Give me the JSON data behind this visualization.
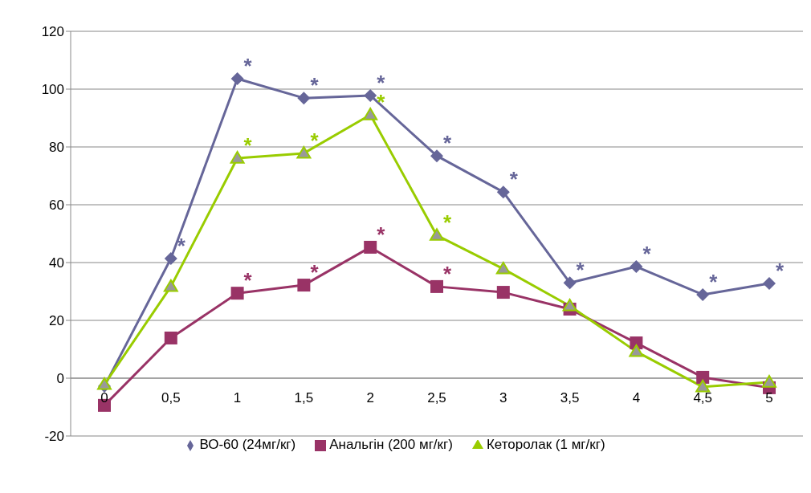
{
  "chart_data": {
    "type": "line",
    "categories": [
      "0",
      "0,5",
      "1",
      "1,5",
      "2",
      "2,5",
      "3",
      "3,5",
      "4",
      "4,5",
      "5"
    ],
    "series": [
      {
        "name": "ВО-60 (24мг/кг)",
        "color": "#666699",
        "marker": "diamond",
        "values": [
          -2.8,
          41.4,
          103.6,
          96.9,
          97.8,
          76.9,
          64.4,
          33,
          38.6,
          28.9,
          32.8
        ]
      },
      {
        "name": "Анальгін (200 мг/кг)",
        "color": "#993366",
        "marker": "square",
        "values": [
          -9.4,
          13.9,
          29.4,
          32.2,
          45.3,
          31.7,
          29.7,
          23.9,
          12.2,
          0.3,
          -3.3
        ]
      },
      {
        "name": "Кеторолак (1 мг/кг)",
        "color": "#99cc00",
        "marker": "triangle",
        "values": [
          -2.2,
          31.7,
          76.1,
          77.8,
          91.1,
          49.4,
          37.8,
          25,
          9.2,
          -3,
          -1.4
        ]
      }
    ],
    "ylim": [
      -20,
      120
    ],
    "yticks": [
      -20,
      0,
      20,
      40,
      60,
      80,
      100,
      120
    ],
    "grid": "y",
    "legend": "bottom",
    "annotations": [
      {
        "text": "*",
        "x": "0,5",
        "y": 41.4
      },
      {
        "text": "*",
        "x": "1",
        "y": 103.6
      },
      {
        "text": "*",
        "x": "1,5",
        "y": 96.9
      },
      {
        "text": "*",
        "x": "2",
        "y": 97.8
      },
      {
        "text": "*",
        "x": "2,5",
        "y": 76.9
      },
      {
        "text": "*",
        "x": "3",
        "y": 64.4
      },
      {
        "text": "*",
        "x": "3,5",
        "y": 33
      },
      {
        "text": "*",
        "x": "4",
        "y": 38.6
      },
      {
        "text": "*",
        "x": "4,5",
        "y": 28.9
      },
      {
        "text": "*",
        "x": "5",
        "y": 32.8
      },
      {
        "text": "*",
        "x": "1",
        "y": 76.1
      },
      {
        "text": "*",
        "x": "1,5",
        "y": 77.8
      },
      {
        "text": "*",
        "x": "2",
        "y": 91.1
      },
      {
        "text": "*",
        "x": "2,5",
        "y": 49.4
      },
      {
        "text": "*",
        "x": "1",
        "y": 29.4
      },
      {
        "text": "*",
        "x": "1,5",
        "y": 32.2
      },
      {
        "text": "*",
        "x": "2",
        "y": 45.3
      },
      {
        "text": "*",
        "x": "2,5",
        "y": 31.7
      }
    ]
  }
}
